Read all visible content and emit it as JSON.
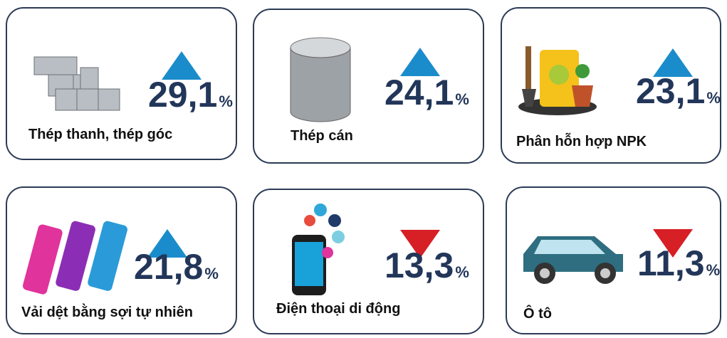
{
  "cards": [
    {
      "label": "Thép thanh, thép góc",
      "value": "29,1",
      "unit": "%",
      "direction": "up",
      "color": "#1b8ccb"
    },
    {
      "label": "Thép cán",
      "value": "24,1",
      "unit": "%",
      "direction": "up",
      "color": "#1b8ccb"
    },
    {
      "label": "Phân hỗn hợp NPK",
      "value": "23,1",
      "unit": "%",
      "direction": "up",
      "color": "#1b8ccb"
    },
    {
      "label": "Vải dệt bằng sợi tự nhiên",
      "value": "21,8",
      "unit": "%",
      "direction": "up",
      "color": "#1b8ccb"
    },
    {
      "label": "Điện thoại di động",
      "value": "13,3",
      "unit": "%",
      "direction": "down",
      "color": "#d71f26"
    },
    {
      "label": "Ô tô",
      "value": "11,3",
      "unit": "%",
      "direction": "down",
      "color": "#d71f26"
    }
  ]
}
